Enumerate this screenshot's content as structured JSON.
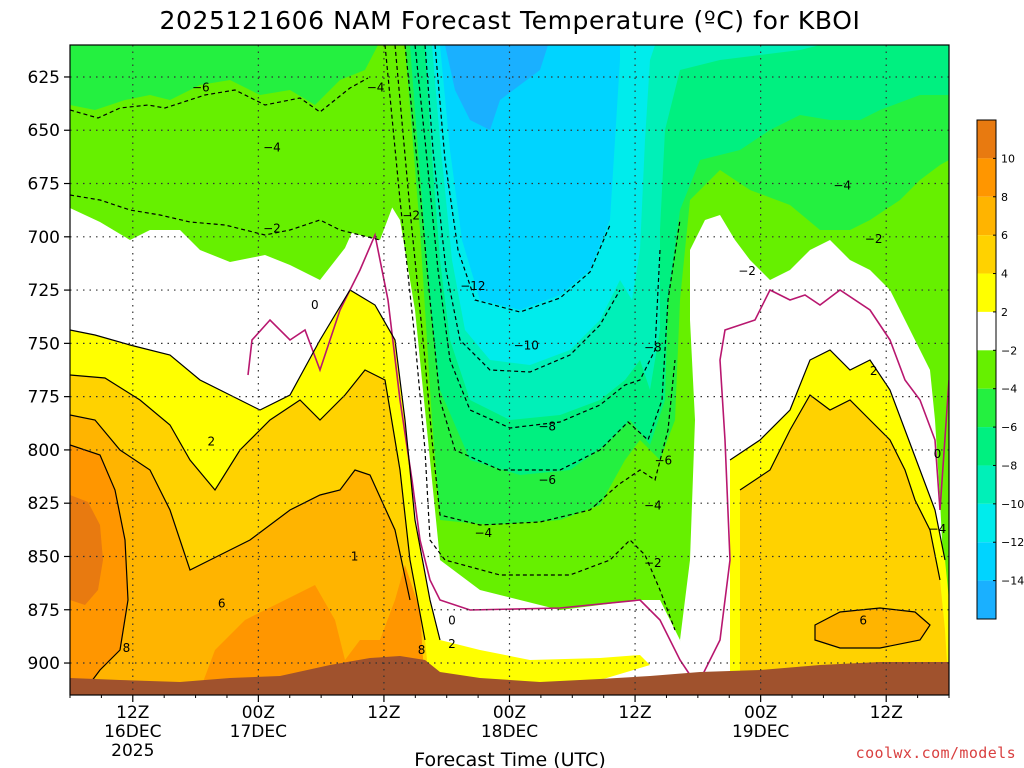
{
  "colors": {
    "ground": "#a0522d",
    "warm_line": "#000000",
    "zero_line": "#b8176f",
    "cold_line": "#000000",
    "credit": "#d94040"
  },
  "chart_data": {
    "type": "heatmap",
    "title": "2025121606 NAM Forecast Temperature (ºC) for KBOI",
    "xlabel": "Forecast Time (UTC)",
    "ylabel": "",
    "y_ticks": [
      "625",
      "650",
      "675",
      "700",
      "725",
      "750",
      "775",
      "800",
      "825",
      "850",
      "875",
      "900"
    ],
    "y_values": [
      625,
      650,
      675,
      700,
      725,
      750,
      775,
      800,
      825,
      850,
      875,
      900
    ],
    "ylim": [
      610,
      915
    ],
    "x_ticks": [
      {
        "hour": 6,
        "label": "12Z",
        "sub": "16DEC",
        "sub2": "2025"
      },
      {
        "hour": 18,
        "label": "00Z",
        "sub": "17DEC",
        "sub2": ""
      },
      {
        "hour": 30,
        "label": "12Z",
        "sub": "",
        "sub2": ""
      },
      {
        "hour": 42,
        "label": "00Z",
        "sub": "18DEC",
        "sub2": ""
      },
      {
        "hour": 54,
        "label": "12Z",
        "sub": "",
        "sub2": ""
      },
      {
        "hour": 66,
        "label": "00Z",
        "sub": "19DEC",
        "sub2": ""
      },
      {
        "hour": 78,
        "label": "12Z",
        "sub": "",
        "sub2": ""
      }
    ],
    "xlim": [
      0,
      84
    ],
    "colorbar": {
      "levels": [
        -16,
        -14,
        -12,
        -10,
        -8,
        -6,
        -4,
        -2,
        2,
        4,
        6,
        8,
        10,
        12
      ],
      "labels": [
        "−14",
        "−12",
        "−10",
        "−8",
        "−6",
        "−4",
        "−2",
        "2",
        "4",
        "6",
        "8",
        "10"
      ],
      "colors": [
        "#1ab0ff",
        "#00d4ff",
        "#00ecec",
        "#00f0b8",
        "#00f080",
        "#24f040",
        "#66f000",
        "#ffffff",
        "#ffff00",
        "#ffd200",
        "#ffb400",
        "#ff9600",
        "#e87a10"
      ]
    },
    "contour_labels": [
      {
        "text": "−6",
        "hour": 12.5,
        "p": 630
      },
      {
        "text": "−4",
        "hour": 29.2,
        "p": 630
      },
      {
        "text": "−4",
        "hour": 19.3,
        "p": 658
      },
      {
        "text": "−2",
        "hour": 32.6,
        "p": 690
      },
      {
        "text": "−2",
        "hour": 19.3,
        "p": 696
      },
      {
        "text": "0",
        "hour": 23.4,
        "p": 732
      },
      {
        "text": "−12",
        "hour": 38.5,
        "p": 723
      },
      {
        "text": "−10",
        "hour": 43.6,
        "p": 751
      },
      {
        "text": "−8",
        "hour": 55.7,
        "p": 752
      },
      {
        "text": "−8",
        "hour": 45.6,
        "p": 789
      },
      {
        "text": "−6",
        "hour": 45.6,
        "p": 814
      },
      {
        "text": "−6",
        "hour": 56.7,
        "p": 805
      },
      {
        "text": "−4",
        "hour": 55.7,
        "p": 826
      },
      {
        "text": "−4",
        "hour": 39.5,
        "p": 839
      },
      {
        "text": "−2",
        "hour": 55.7,
        "p": 853
      },
      {
        "text": "−4",
        "hour": 73.8,
        "p": 676
      },
      {
        "text": "−2",
        "hour": 76.8,
        "p": 701
      },
      {
        "text": "−2",
        "hour": 64.7,
        "p": 716
      },
      {
        "text": "2",
        "hour": 76.8,
        "p": 763
      },
      {
        "text": "0",
        "hour": 82.9,
        "p": 802
      },
      {
        "text": "−4",
        "hour": 82.9,
        "p": 837
      },
      {
        "text": "2",
        "hour": 13.5,
        "p": 796
      },
      {
        "text": "6",
        "hour": 14.5,
        "p": 872
      },
      {
        "text": "8",
        "hour": 5.4,
        "p": 893
      },
      {
        "text": "1",
        "hour": 27.2,
        "p": 850
      },
      {
        "text": "8",
        "hour": 33.6,
        "p": 894
      },
      {
        "text": "0",
        "hour": 36.5,
        "p": 880
      },
      {
        "text": "2",
        "hour": 36.5,
        "p": 891
      },
      {
        "text": "6",
        "hour": 75.8,
        "p": 880
      }
    ]
  },
  "credit": "coolwx.com/models"
}
